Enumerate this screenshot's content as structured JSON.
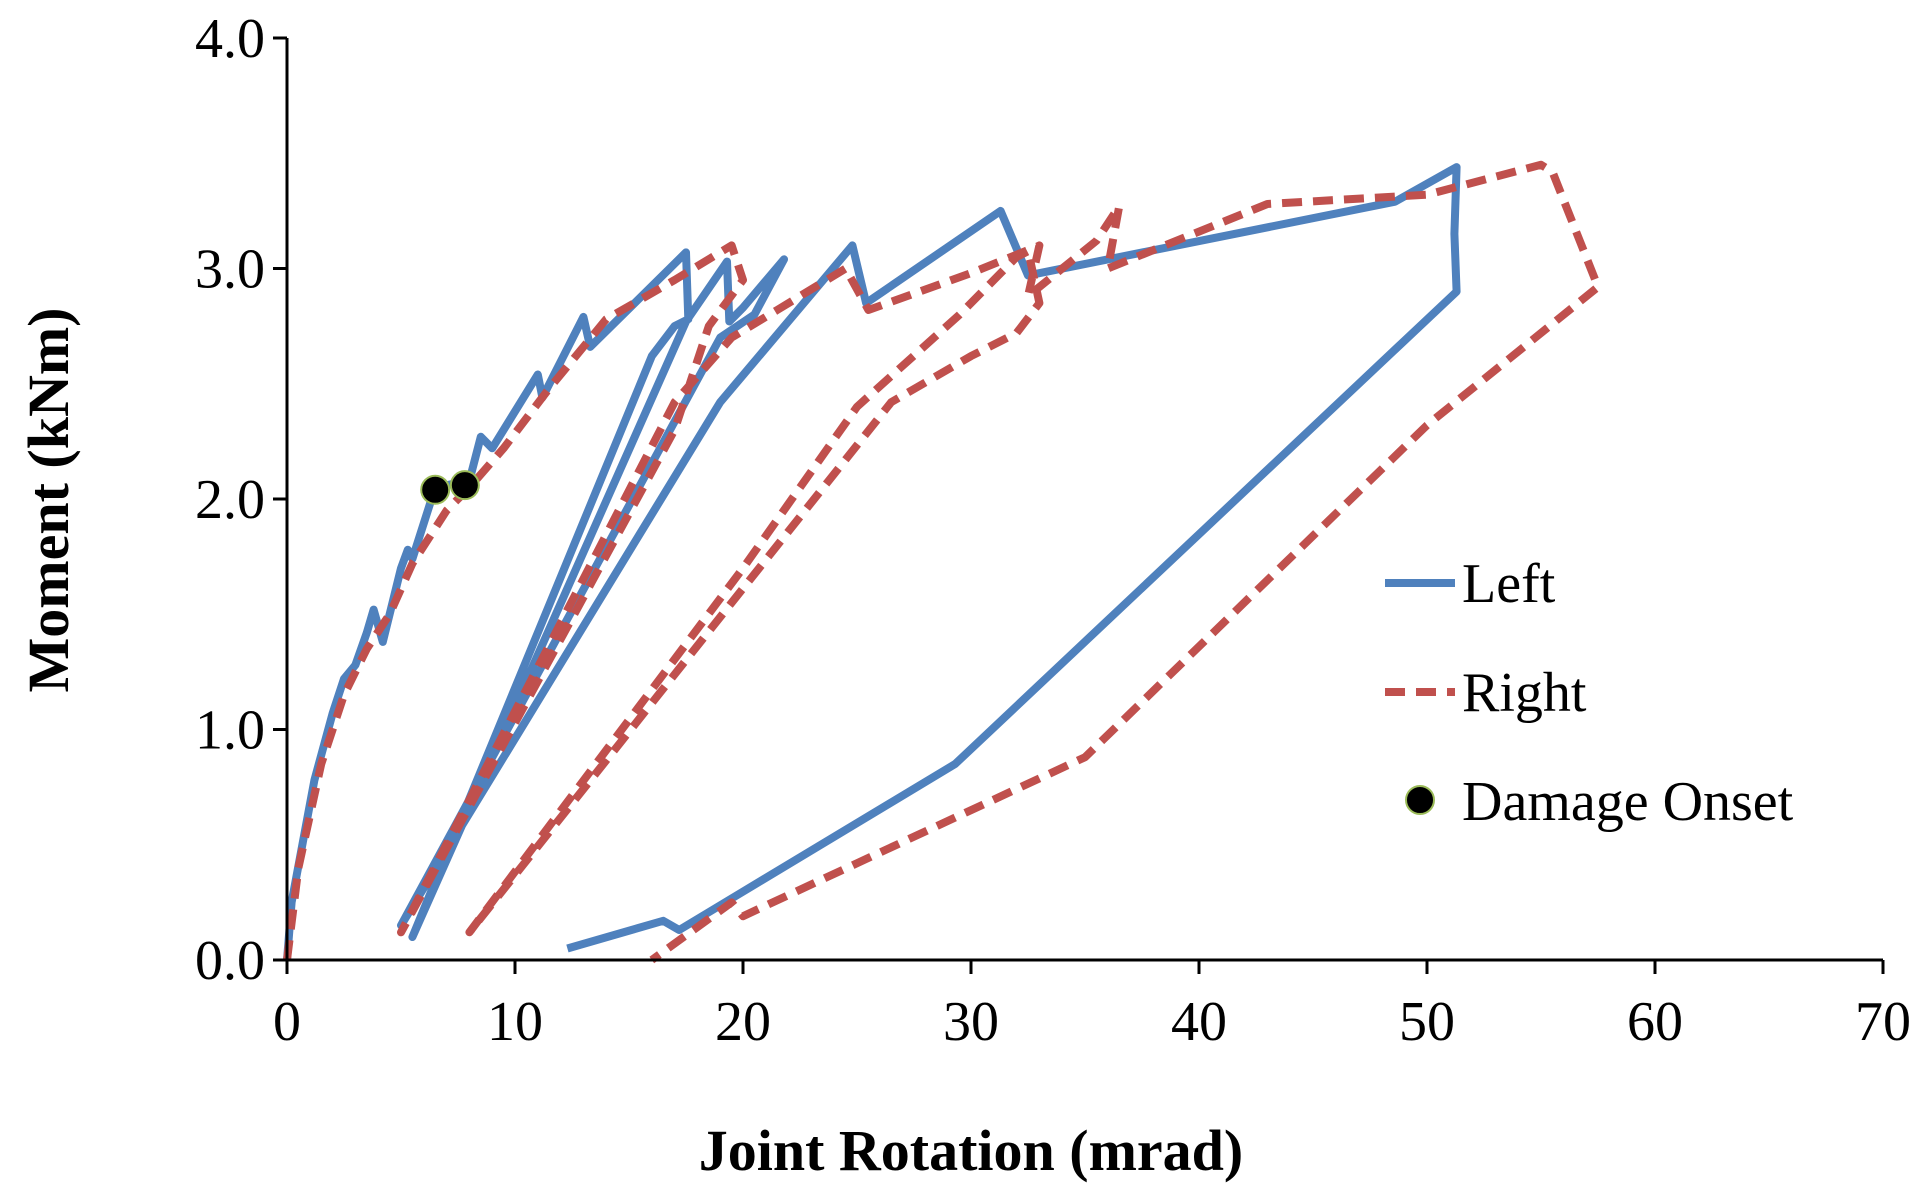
{
  "chart_data": {
    "type": "line",
    "title": "",
    "xlabel": "Joint Rotation  (mrad)",
    "ylabel": "Moment  (kNm)",
    "xlim": [
      0,
      70
    ],
    "ylim": [
      0,
      4.0
    ],
    "xticks": [
      "0",
      "10",
      "20",
      "30",
      "40",
      "50",
      "60",
      "70"
    ],
    "yticks": [
      "0.0",
      "1.0",
      "2.0",
      "3.0",
      "4.0"
    ],
    "grid": false,
    "legend_position": "right",
    "series": [
      {
        "name": "Left",
        "style": "solid",
        "color": "#4f81bd",
        "x": [
          0,
          0.2,
          1.2,
          2.0,
          2.5,
          3.0,
          3.5,
          3.8,
          4.2,
          5.0,
          5.3,
          5.5,
          6.5,
          8.0,
          8.5,
          9.0,
          11.0,
          11.2,
          13.0,
          13.3,
          17.5,
          17.6,
          17.0,
          16.0,
          5.5,
          17.5,
          19.3,
          19.4,
          20.0,
          21.8,
          20.5,
          19.0,
          5.0,
          19.0,
          24.8,
          25.4,
          31.3,
          32.5,
          48.6,
          51.3,
          51.2,
          51.3,
          29.3,
          17.2,
          16.5,
          12.3
        ],
        "y": [
          0,
          0.25,
          0.78,
          1.07,
          1.22,
          1.28,
          1.42,
          1.52,
          1.38,
          1.7,
          1.78,
          1.74,
          2.05,
          2.08,
          2.27,
          2.22,
          2.54,
          2.44,
          2.79,
          2.66,
          3.07,
          2.78,
          2.75,
          2.62,
          0.1,
          2.77,
          3.03,
          2.77,
          2.83,
          3.04,
          2.8,
          2.7,
          0.15,
          2.42,
          3.1,
          2.85,
          3.25,
          2.97,
          3.29,
          3.44,
          3.15,
          2.9,
          0.85,
          0.13,
          0.17,
          0.05
        ]
      },
      {
        "name": "Right",
        "style": "dashed",
        "color": "#c0504d",
        "x": [
          0,
          0.5,
          1.5,
          2.5,
          3.5,
          4.5,
          5.5,
          7.0,
          8.0,
          9.5,
          11.5,
          14.0,
          17.0,
          19.5,
          20.0,
          18.5,
          17.0,
          5.0,
          17.0,
          19.5,
          21.5,
          24.5,
          25.5,
          30.0,
          32.5,
          33.0,
          32.0,
          30.0,
          26.5,
          8.0,
          20.0,
          25.0,
          29.5,
          32.0,
          33.0,
          32.5,
          35.5,
          36.5,
          36.0,
          43.0,
          50.0,
          55.0,
          55.5,
          57.5,
          50.0,
          35.0,
          20.0,
          19.5,
          16.0
        ],
        "y": [
          0,
          0.4,
          0.85,
          1.15,
          1.35,
          1.5,
          1.72,
          1.95,
          2.05,
          2.22,
          2.48,
          2.78,
          2.95,
          3.1,
          2.95,
          2.75,
          2.3,
          0.12,
          2.42,
          2.7,
          2.82,
          3.0,
          2.82,
          2.98,
          3.08,
          2.85,
          2.72,
          2.62,
          2.42,
          0.12,
          1.7,
          2.4,
          2.8,
          3.05,
          3.1,
          2.88,
          3.12,
          3.27,
          3.0,
          3.28,
          3.32,
          3.45,
          3.42,
          2.92,
          2.32,
          0.88,
          0.19,
          0.25,
          0.0
        ]
      }
    ],
    "markers": {
      "name": "Damage Onset",
      "color": "#000000",
      "edge_color": "#9bbb59",
      "points": [
        {
          "x": 6.5,
          "y": 2.04
        },
        {
          "x": 7.8,
          "y": 2.06
        }
      ]
    }
  }
}
